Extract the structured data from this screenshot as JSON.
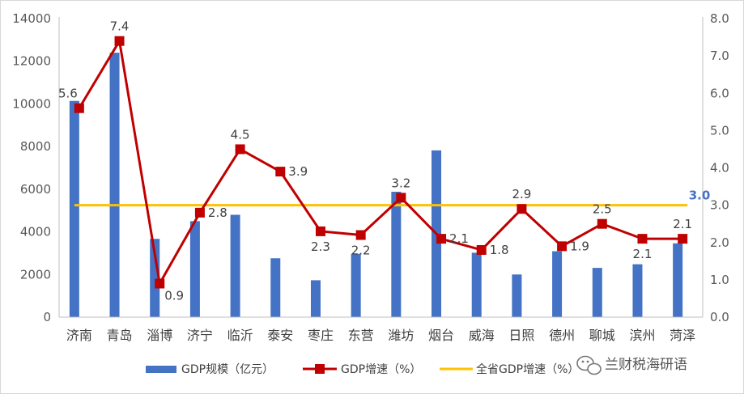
{
  "chart_data": {
    "type": "bar+line",
    "categories": [
      "济南",
      "青岛",
      "淄博",
      "济宁",
      "临沂",
      "泰安",
      "枣庄",
      "东营",
      "潍坊",
      "烟台",
      "威海",
      "日照",
      "德州",
      "聊城",
      "滨州",
      "菏泽"
    ],
    "series": [
      {
        "name": "GDP规模（亿元）",
        "type": "bar",
        "axis": "left",
        "color": "#4472c4",
        "values": [
          10140,
          12400,
          3670,
          4500,
          4800,
          2760,
          1730,
          2970,
          5880,
          7820,
          3020,
          2000,
          3090,
          2310,
          2480,
          3460
        ]
      },
      {
        "name": "GDP增速（%）",
        "type": "line",
        "axis": "right",
        "color": "#c00000",
        "values": [
          5.6,
          7.4,
          0.9,
          2.8,
          4.5,
          3.9,
          2.3,
          2.2,
          3.2,
          2.1,
          1.8,
          2.9,
          1.9,
          2.5,
          2.1,
          2.1
        ],
        "labels": [
          "5.6",
          "7.4",
          "0.9",
          "2.8",
          "4.5",
          "3.9",
          "2.3",
          "2.2",
          "3.2",
          "2.1",
          "1.8",
          "2.9",
          "1.9",
          "2.5",
          "2.1",
          "2.1"
        ]
      },
      {
        "name": "全省GDP增速（%）",
        "type": "line",
        "axis": "right",
        "color": "#ffc000",
        "value": 3.0,
        "label": "3.0"
      }
    ],
    "left_axis": {
      "min": 0,
      "max": 14000,
      "step": 2000,
      "ticks": [
        "0",
        "2000",
        "4000",
        "6000",
        "8000",
        "10000",
        "12000",
        "14000"
      ]
    },
    "right_axis": {
      "min": 0,
      "max": 8,
      "step": 1,
      "ticks": [
        "0.0",
        "1.0",
        "2.0",
        "3.0",
        "4.0",
        "5.0",
        "6.0",
        "7.0",
        "8.0"
      ]
    },
    "grid": false,
    "legend_position": "bottom"
  },
  "watermark": {
    "icon": "wechat-icon",
    "text": "兰财税海研语"
  }
}
